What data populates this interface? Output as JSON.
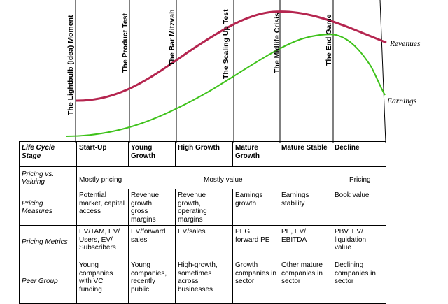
{
  "stages_top": [
    "The Lightbulb (Idea) Moment",
    "The Product Test",
    "The Bar Mitzvah",
    "The Scaling Up Test",
    "The Midlife Crisis",
    "The End Game"
  ],
  "curves": {
    "revenues_label": "Revenues",
    "earnings_label": "Earnings",
    "revenues_color": "#b5254f",
    "earnings_color": "#3ec21a"
  },
  "table": {
    "header": {
      "rowhead": "Life Cycle Stage",
      "cols": [
        "Start-Up",
        "Young Growth",
        "High Growth",
        "Mature Growth",
        "Mature Stable",
        "Decline"
      ]
    },
    "pricing_vs_valuing": {
      "rowhead": "Pricing vs. Valuing",
      "left": "Mostly pricing",
      "middle": "Mostly value",
      "right": "Pricing"
    },
    "rows": [
      {
        "rowhead": "Pricing Measures",
        "cells": [
          "Potential market, capital access",
          "Revenue growth, gross margins",
          "Revenue growth, operating margins",
          "Earnings growth",
          "Earnings stability",
          "Book value"
        ]
      },
      {
        "rowhead": "Pricing Metrics",
        "cells": [
          "EV/TAM, EV/ Users, EV/ Subscribers",
          "EV/forward sales",
          "EV/sales",
          "PEG, forward PE",
          "PE, EV/ EBITDA",
          "PBV, EV/ liquidation value"
        ]
      },
      {
        "rowhead": "Peer Group",
        "cells": [
          "Young companies with VC funding",
          "Young companies, recently public",
          "High-growth, sometimes across businesses",
          "Growth companies in sector",
          "Other mature companies in sector",
          "Declining companies in sector"
        ]
      }
    ]
  }
}
